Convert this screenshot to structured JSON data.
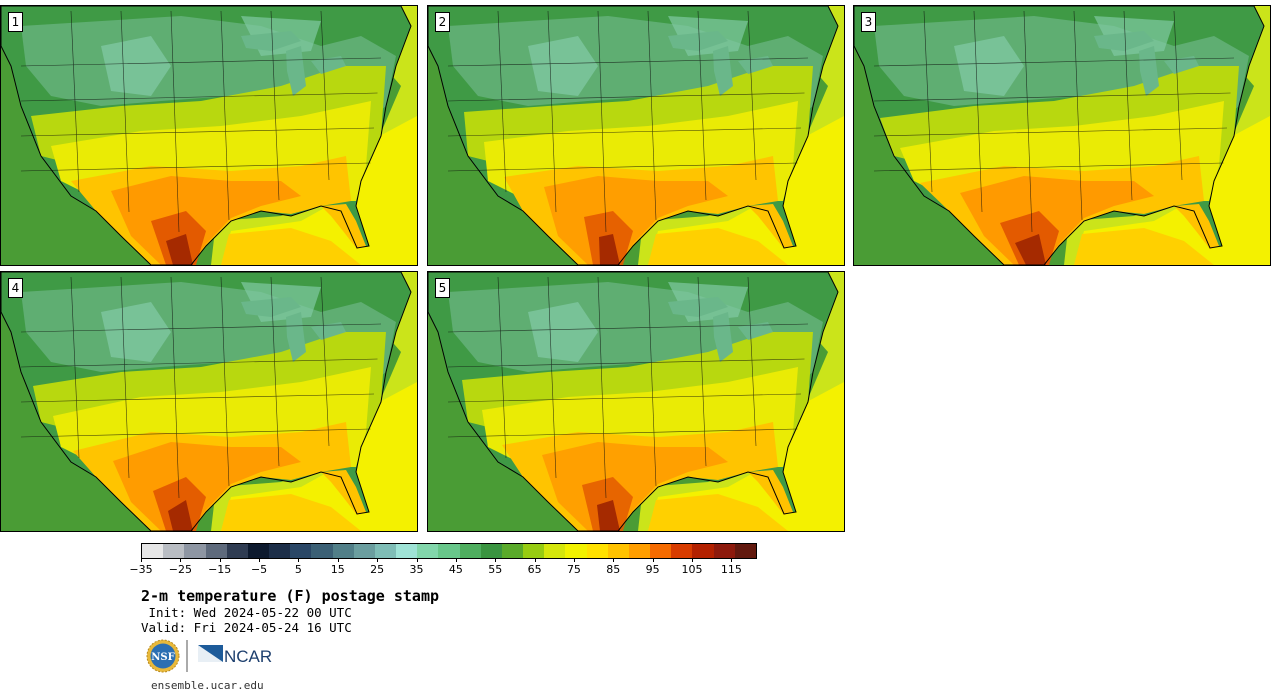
{
  "panels": [
    {
      "label": "1"
    },
    {
      "label": "2"
    },
    {
      "label": "3"
    },
    {
      "label": "4"
    },
    {
      "label": "5"
    }
  ],
  "colorbar": {
    "colors": [
      "#e6e6e6",
      "#b9bdc3",
      "#8e96a3",
      "#5e6a7c",
      "#2f3c52",
      "#0d1a2e",
      "#1c2e48",
      "#2a4766",
      "#3b6075",
      "#517f88",
      "#6b9e9f",
      "#7fbdb6",
      "#9fe3d6",
      "#82d6ab",
      "#68c68a",
      "#4fae5f",
      "#3a9440",
      "#5aaa2a",
      "#97cc12",
      "#d5e60c",
      "#f2f200",
      "#ffe100",
      "#ffc200",
      "#ff9e00",
      "#f56b00",
      "#d83c00",
      "#b32100",
      "#8d1a0c",
      "#62190e"
    ],
    "ticks": [
      "−35",
      "−25",
      "−15",
      "−5",
      "5",
      "15",
      "25",
      "35",
      "45",
      "55",
      "65",
      "75",
      "85",
      "95",
      "105",
      "115"
    ]
  },
  "title": "2-m temperature (F) postage stamp",
  "init": " Init: Wed 2024-05-22 00 UTC",
  "valid": "Valid: Fri 2024-05-24 16 UTC",
  "logos": {
    "nsf": "NSF",
    "ncar": "NCAR"
  },
  "site": "ensemble.ucar.edu"
}
